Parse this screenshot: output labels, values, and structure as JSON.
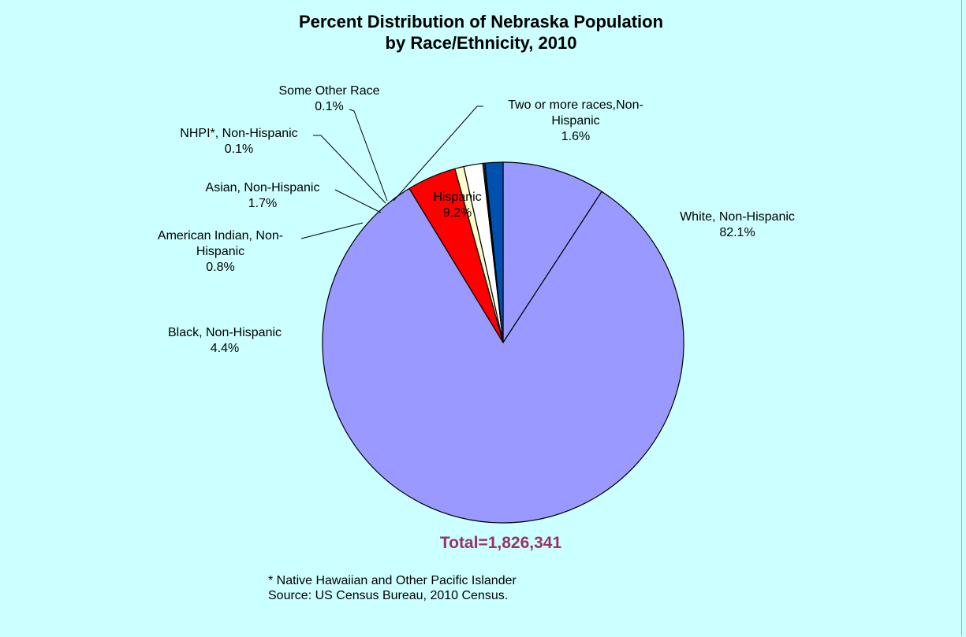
{
  "chart_data": {
    "type": "pie",
    "title_line1": "Percent Distribution of Nebraska Population",
    "title_line2": "by Race/Ethnicity, 2010",
    "slices": [
      {
        "label_line1": "Hispanic",
        "label_line2": "",
        "value": 9.2,
        "value_text": "9.2%",
        "color": "#9999ff"
      },
      {
        "label_line1": "White, Non-Hispanic",
        "label_line2": "",
        "value": 82.1,
        "value_text": "82.1%",
        "color": "#9999ff"
      },
      {
        "label_line1": "Black, Non-Hispanic",
        "label_line2": "",
        "value": 4.4,
        "value_text": "4.4%",
        "color": "#ff0000"
      },
      {
        "label_line1": "American Indian, Non-",
        "label_line2": "Hispanic",
        "value": 0.8,
        "value_text": "0.8%",
        "color": "#ffffcc"
      },
      {
        "label_line1": "Asian, Non-Hispanic",
        "label_line2": "",
        "value": 1.7,
        "value_text": "1.7%",
        "color": "#ffffff"
      },
      {
        "label_line1": "NHPI*, Non-Hispanic",
        "label_line2": "",
        "value": 0.1,
        "value_text": "0.1%",
        "color": "#ffffff"
      },
      {
        "label_line1": "Some Other Race",
        "label_line2": "",
        "value": 0.1,
        "value_text": "0.1%",
        "color": "#ffffff"
      },
      {
        "label_line1": "Two or more races,Non-",
        "label_line2": "Hispanic",
        "value": 1.6,
        "value_text": "1.6%",
        "color": "#0050b0"
      }
    ],
    "total_text": "Total=1,826,341",
    "footnote_line1": "* Native Hawaiian and Other Pacific Islander",
    "footnote_line2": "Source: US Census Bureau, 2010 Census."
  }
}
